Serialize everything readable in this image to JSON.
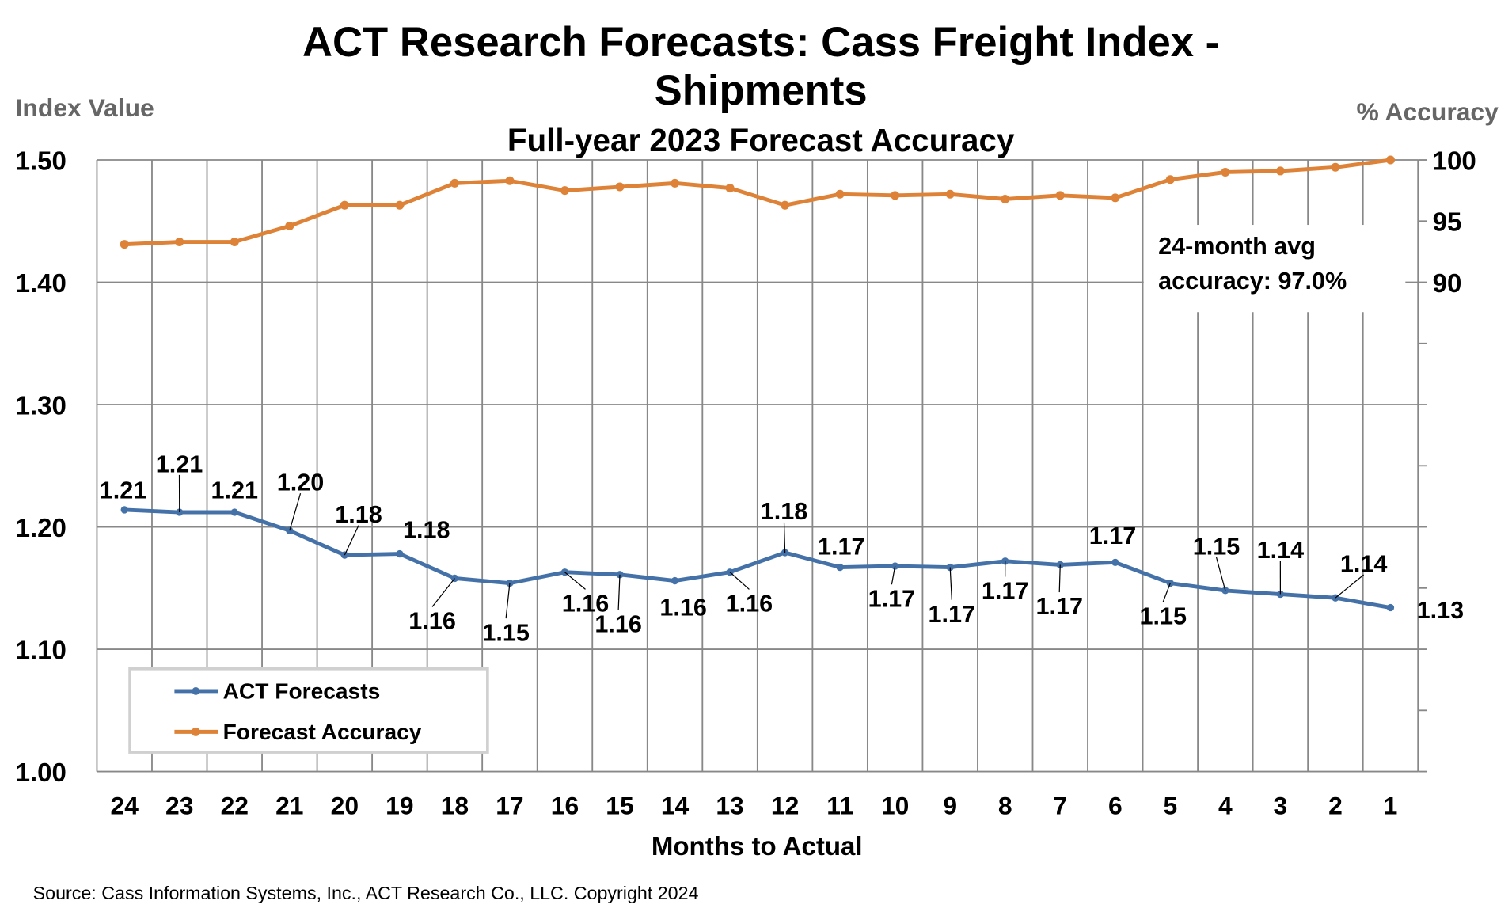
{
  "chart_data": {
    "type": "line",
    "title": "ACT Research Forecasts: Cass Freight Index -",
    "title_line2": "Shipments",
    "subtitle": "Full-year 2023 Forecast Accuracy",
    "ylabel_left": "Index Value",
    "ylabel_right": "% Accuracy",
    "xlabel": "Months to Actual",
    "ylim_left": [
      1.0,
      1.5
    ],
    "ylim_right": [
      50,
      100
    ],
    "yticks_left": [
      "1.00",
      "1.10",
      "1.20",
      "1.30",
      "1.40",
      "1.50"
    ],
    "yticks_right_labeled": [
      "90",
      "95",
      "100"
    ],
    "grid": true,
    "legend_position": "bottom-left",
    "categories": [
      "24",
      "23",
      "22",
      "21",
      "20",
      "19",
      "18",
      "17",
      "16",
      "15",
      "14",
      "13",
      "12",
      "11",
      "10",
      "9",
      "8",
      "7",
      "6",
      "5",
      "4",
      "3",
      "2",
      "1"
    ],
    "series": [
      {
        "name": "ACT Forecasts",
        "axis": "left",
        "color": "#4472A8",
        "values": [
          1.214,
          1.212,
          1.212,
          1.197,
          1.177,
          1.178,
          1.158,
          1.154,
          1.163,
          1.161,
          1.156,
          1.163,
          1.179,
          1.167,
          1.168,
          1.167,
          1.172,
          1.169,
          1.171,
          1.154,
          1.148,
          1.145,
          1.142,
          1.134
        ],
        "data_labels": [
          "1.21",
          "1.21",
          "1.21",
          "1.20",
          "1.18",
          "1.18",
          "1.16",
          "1.15",
          "1.16",
          "1.16",
          "1.16",
          "1.16",
          "1.18",
          "1.17",
          "1.17",
          "1.17",
          "1.17",
          "1.17",
          "1.17",
          "1.15",
          "1.15",
          "1.14",
          "1.14",
          "1.13"
        ]
      },
      {
        "name": "Forecast Accuracy",
        "axis": "right",
        "color": "#DD8236",
        "values": [
          93.1,
          93.3,
          93.3,
          94.6,
          96.3,
          96.3,
          98.1,
          98.3,
          97.5,
          97.8,
          98.1,
          97.7,
          96.3,
          97.2,
          97.1,
          97.2,
          96.8,
          97.1,
          96.9,
          98.4,
          99.0,
          99.1,
          99.4,
          100
        ]
      }
    ],
    "annotation": [
      "24-month avg",
      "accuracy: 97.0%"
    ],
    "source": "Source: Cass Information Systems, Inc., ACT Research Co., LLC. Copyright 2024"
  }
}
